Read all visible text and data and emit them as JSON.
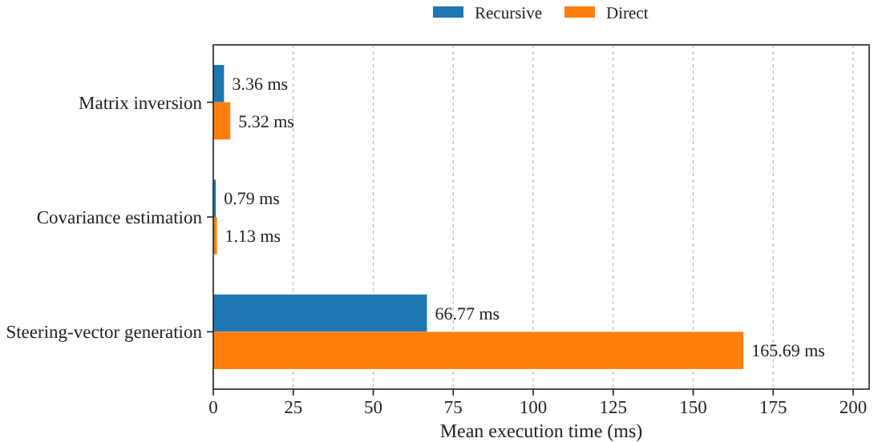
{
  "chart_data": {
    "type": "bar",
    "orientation": "horizontal",
    "xlabel": "Mean execution time (ms)",
    "categories": [
      "Matrix inversion",
      "Covariance estimation",
      "Steering-vector generation"
    ],
    "series": [
      {
        "name": "Recursive",
        "color": "#1f77b4",
        "values": [
          3.36,
          0.79,
          66.77
        ],
        "value_labels": [
          "3.36 ms",
          "0.79 ms",
          "66.77 ms"
        ]
      },
      {
        "name": "Direct",
        "color": "#ff7f0e",
        "values": [
          5.32,
          1.13,
          165.69
        ],
        "value_labels": [
          "5.32 ms",
          "1.13 ms",
          "165.69 ms"
        ]
      }
    ],
    "xlim": [
      0,
      205
    ],
    "xticks": [
      0,
      25,
      50,
      75,
      100,
      125,
      150,
      175,
      200
    ],
    "grid": "x",
    "legend": "top"
  }
}
